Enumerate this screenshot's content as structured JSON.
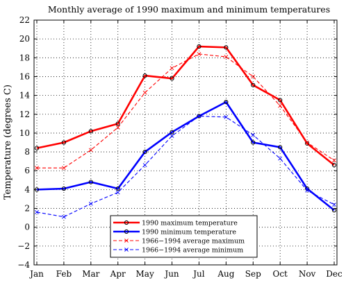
{
  "chart_data": {
    "type": "line",
    "title": "Monthly average of 1990 maximum and minimum temperatures",
    "xlabel": "",
    "ylabel": "Temperature (degrees C)",
    "categories": [
      "Jan",
      "Feb",
      "Mar",
      "Apr",
      "May",
      "Jun",
      "Jul",
      "Aug",
      "Sep",
      "Oct",
      "Nov",
      "Dec"
    ],
    "ylim": [
      -4,
      22
    ],
    "yticks": [
      -4,
      -2,
      0,
      2,
      4,
      6,
      8,
      10,
      12,
      14,
      16,
      18,
      20,
      22
    ],
    "ytick_labels": [
      "−4",
      "−2",
      "0",
      "2",
      "4",
      "6",
      "8",
      "10",
      "12",
      "14",
      "16",
      "18",
      "20",
      "22"
    ],
    "grid": true,
    "legend_position": "bottom-center",
    "series": [
      {
        "name": "1990 maximum temperature",
        "values": [
          8.4,
          9.0,
          10.2,
          11.0,
          16.1,
          15.8,
          19.2,
          19.1,
          15.1,
          13.5,
          8.9,
          6.6
        ],
        "color": "#ff0000",
        "style": "solid",
        "marker": "circle"
      },
      {
        "name": "1990 minimum temperature",
        "values": [
          4.0,
          4.1,
          4.8,
          4.1,
          8.0,
          10.1,
          11.8,
          13.3,
          9.0,
          8.5,
          4.1,
          1.8
        ],
        "color": "#0000ff",
        "style": "solid",
        "marker": "circle"
      },
      {
        "name": "1966−1994 average maximum",
        "values": [
          6.3,
          6.3,
          8.2,
          10.6,
          14.3,
          16.9,
          18.4,
          18.1,
          16.0,
          12.9,
          9.0,
          7.1
        ],
        "color": "#ff0000",
        "style": "dashed",
        "marker": "x"
      },
      {
        "name": "1966−1994 average minimum",
        "values": [
          1.6,
          1.1,
          2.5,
          3.7,
          6.6,
          9.7,
          11.8,
          11.7,
          9.8,
          7.3,
          3.9,
          2.4
        ],
        "color": "#0000ff",
        "style": "dashed",
        "marker": "x"
      }
    ]
  }
}
